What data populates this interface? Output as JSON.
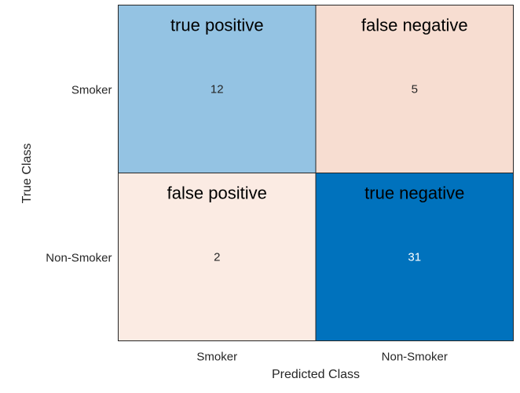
{
  "chart_data": {
    "type": "heatmap",
    "title": "",
    "xlabel": "Predicted Class",
    "ylabel": "True Class",
    "x_categories": [
      "Smoker",
      "Non-Smoker"
    ],
    "y_categories": [
      "Smoker",
      "Non-Smoker"
    ],
    "values": [
      [
        12,
        5
      ],
      [
        2,
        31
      ]
    ],
    "annotations": [
      [
        "true positive",
        "false negative"
      ],
      [
        "false positive",
        "true negative"
      ]
    ],
    "cell_colors": [
      [
        "#94c3e3",
        "#f7ddd1"
      ],
      [
        "#fbebe3",
        "#0072bd"
      ]
    ],
    "value_text_colors": [
      [
        "#262626",
        "#262626"
      ],
      [
        "#262626",
        "#ffffff"
      ]
    ],
    "grid": false,
    "legend": "none"
  }
}
